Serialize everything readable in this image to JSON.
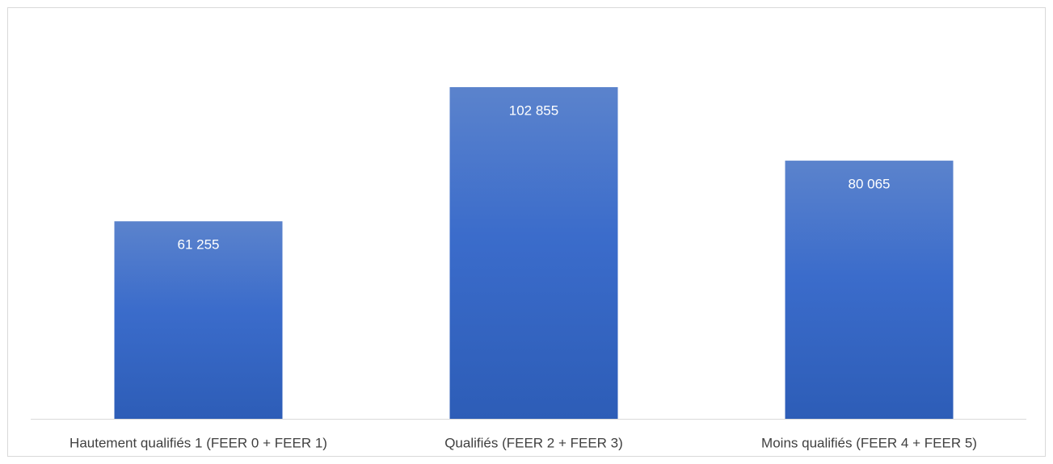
{
  "chart_data": {
    "type": "bar",
    "categories": [
      "Hautement qualifiés 1 (FEER 0 + FEER 1)",
      "Qualifiés (FEER 2 + FEER 3)",
      "Moins qualifiés (FEER 4 + FEER 5)"
    ],
    "values": [
      61255,
      102855,
      80065
    ],
    "value_labels": [
      "61 255",
      "102 855",
      "80 065"
    ],
    "color": "#4472c4",
    "ylim": [
      0,
      120000
    ]
  }
}
